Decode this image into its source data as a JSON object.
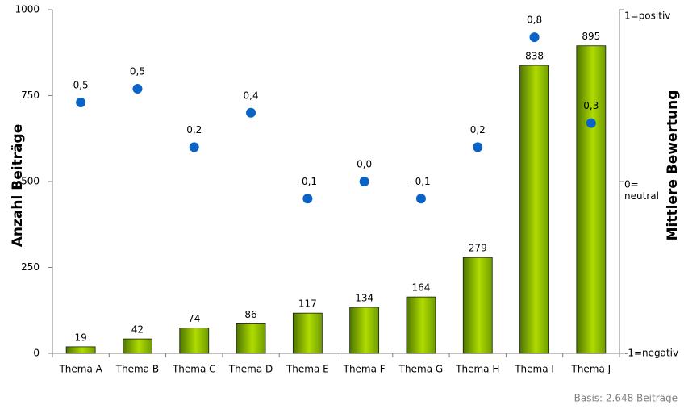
{
  "chart_data": {
    "type": "bar",
    "y_label": "Anzahl Beiträge",
    "y2_label": "Mittlere Bewertung",
    "categories": [
      "Thema A",
      "Thema B",
      "Thema C",
      "Thema D",
      "Thema E",
      "Thema F",
      "Thema G",
      "Thema H",
      "Thema I",
      "Thema J"
    ],
    "series": [
      {
        "type": "bar",
        "color": "#8cc000",
        "values": [
          19,
          42,
          74,
          86,
          117,
          134,
          164,
          279,
          838,
          895
        ]
      },
      {
        "type": "scatter",
        "axis": "y2",
        "color": "#0a64c8",
        "values": [
          0.46,
          0.54,
          0.2,
          0.4,
          -0.1,
          0.0,
          -0.1,
          0.2,
          0.84,
          0.34
        ],
        "value_labels": [
          "0,5",
          "0,5",
          "0,2",
          "0,4",
          "-0,1",
          "0,0",
          "-0,1",
          "0,2",
          "0,8",
          "0,3"
        ]
      }
    ],
    "ylim": [
      0,
      1000
    ],
    "yticks": [
      0,
      250,
      500,
      750,
      1000
    ],
    "y2lim": [
      -1,
      1
    ],
    "y2ticks": [
      {
        "value": -1,
        "label": "-1=negativ"
      },
      {
        "value": 0,
        "label": "0=\nneutral"
      },
      {
        "value": 1,
        "label": "1=positiv"
      }
    ],
    "note": "Basis:  2.648 Beiträge"
  }
}
